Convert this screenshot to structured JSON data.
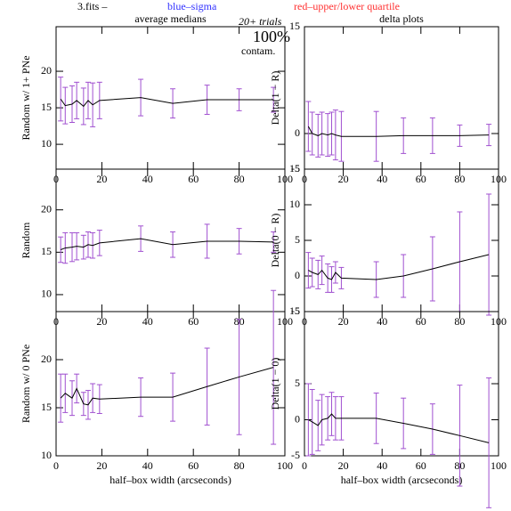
{
  "header": {
    "file": "3.fits  –",
    "sigma": "blue–sigma",
    "quartile": "red–upper/lower quartile",
    "trials": "20+ trials",
    "contam_value": "100%",
    "contam": "contam."
  },
  "chart_data": [
    {
      "type": "line",
      "title": "average medians",
      "ylabel": "Random w/ 1+ PNe",
      "color": "#000000",
      "error_color": "#a050d0",
      "x": [
        2,
        4,
        7,
        9,
        12,
        14,
        16,
        19,
        37,
        51,
        66,
        80,
        95
      ],
      "values": [
        16.2,
        15.3,
        15.5,
        16,
        15.2,
        16,
        15.4,
        16,
        16.4,
        15.6,
        16.1,
        16.1,
        16.1
      ],
      "errors": [
        3,
        2.5,
        2.5,
        2.5,
        2.5,
        2.5,
        3,
        2.5,
        2.5,
        2,
        2,
        1.5,
        1.7
      ],
      "xlim": [
        0,
        100
      ],
      "xticks": [
        0,
        20,
        40,
        60,
        80,
        100
      ],
      "ylim": [
        6.6,
        26.1
      ],
      "yticks": [
        10,
        15,
        20
      ]
    },
    {
      "type": "line",
      "ylabel": "Random",
      "color": "#000000",
      "error_color": "#a050d0",
      "x": [
        2,
        4,
        7,
        9,
        12,
        14,
        16,
        19,
        37,
        51,
        66,
        80,
        95
      ],
      "values": [
        15.3,
        15.5,
        15.6,
        15.7,
        15.6,
        15.9,
        15.8,
        16.1,
        16.6,
        15.9,
        16.3,
        16.3,
        16.2
      ],
      "errors": [
        1.5,
        1.8,
        1.7,
        1.6,
        1.4,
        1.5,
        1.5,
        1.5,
        1.5,
        1.5,
        2,
        1.5,
        1.2
      ],
      "xlim": [
        0,
        100
      ],
      "xticks": [
        0,
        20,
        40,
        60,
        80,
        100
      ],
      "ylim": [
        8,
        24.8
      ],
      "yticks": [
        10,
        15,
        20
      ]
    },
    {
      "type": "line",
      "ylabel": "Random w/ 0 PNe",
      "xlabel": "half–box width (arcseconds)",
      "color": "#000000",
      "error_color": "#a050d0",
      "x": [
        2,
        4,
        7,
        9,
        12,
        14,
        16,
        19,
        37,
        51,
        66,
        80,
        95
      ],
      "values": [
        16,
        16.5,
        16,
        17,
        15.4,
        15.3,
        16,
        15.9,
        16.1,
        16.1,
        17.2,
        18.2,
        19.2
      ],
      "errors": [
        2.5,
        2,
        1.8,
        1.5,
        1.2,
        1.5,
        1.5,
        1.5,
        2,
        2.5,
        4,
        6,
        8
      ],
      "xlim": [
        0,
        100
      ],
      "xticks": [
        0,
        20,
        40,
        60,
        80,
        100
      ],
      "ylim": [
        10,
        25
      ],
      "yticks": [
        10,
        15,
        20
      ]
    },
    {
      "type": "line",
      "title": "delta plots",
      "ylabel": "Delta(1 − R)",
      "color": "#000000",
      "error_color": "#a050d0",
      "x": [
        2,
        4,
        7,
        9,
        12,
        14,
        16,
        19,
        37,
        51,
        66,
        80,
        95
      ],
      "values": [
        1,
        0,
        -0.3,
        0,
        -0.2,
        0,
        -0.2,
        -0.4,
        -0.4,
        -0.3,
        -0.3,
        -0.3,
        -0.2
      ],
      "errors": [
        3.5,
        3,
        3,
        3,
        3,
        3,
        3.5,
        3.5,
        3.5,
        2.5,
        2.5,
        1.5,
        1.5
      ],
      "xlim": [
        0,
        100
      ],
      "xticks": [
        0,
        20,
        40,
        60,
        80,
        100
      ],
      "ylim": [
        -5,
        15
      ],
      "yticks": [
        -5,
        0,
        15
      ]
    },
    {
      "type": "line",
      "ylabel": "Delta(0 − R)",
      "color": "#000000",
      "error_color": "#a050d0",
      "x": [
        2,
        4,
        7,
        9,
        12,
        14,
        16,
        19,
        37,
        51,
        66,
        80,
        95
      ],
      "values": [
        0.8,
        0.5,
        0.2,
        0.8,
        -0.3,
        -0.5,
        0.5,
        -0.3,
        -0.5,
        0,
        1,
        2,
        3
      ],
      "errors": [
        2.5,
        2,
        2,
        2,
        2,
        1.8,
        1.5,
        1.5,
        2.5,
        3,
        4.5,
        7,
        8.5
      ],
      "xlim": [
        0,
        100
      ],
      "xticks": [
        0,
        20,
        40,
        60,
        80,
        100
      ],
      "ylim": [
        -5,
        15
      ],
      "yticks": [
        -5,
        0,
        5,
        10,
        15
      ]
    },
    {
      "type": "line",
      "ylabel": "Delta(1 − 0)",
      "xlabel": "half–box width (arcseconds)",
      "color": "#000000",
      "error_color": "#a050d0",
      "x": [
        2,
        4,
        7,
        9,
        12,
        14,
        16,
        19,
        37,
        51,
        66,
        80,
        95
      ],
      "values": [
        0,
        -0.3,
        -0.8,
        0,
        0.2,
        0.8,
        0.2,
        0.2,
        0.2,
        -0.5,
        -1.3,
        -2.2,
        -3.2
      ],
      "errors": [
        5,
        4.5,
        3.5,
        3.5,
        3,
        3,
        3,
        3,
        3.5,
        3.5,
        3.5,
        7,
        9
      ],
      "xlim": [
        0,
        100
      ],
      "xticks": [
        0,
        20,
        40,
        60,
        80,
        100
      ],
      "ylim": [
        -5,
        15
      ],
      "yticks": [
        -5,
        0,
        5,
        15
      ]
    }
  ]
}
